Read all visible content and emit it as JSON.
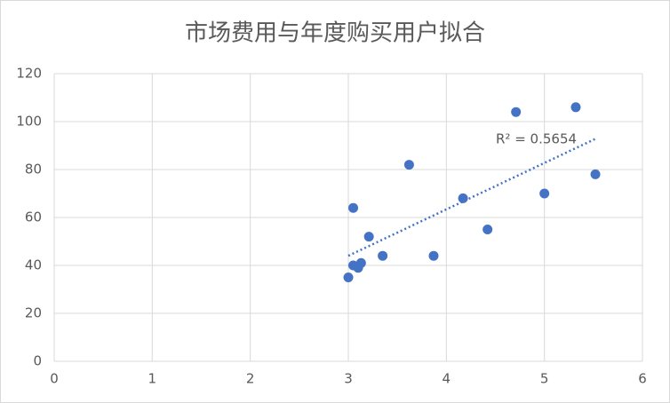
{
  "chart_data": {
    "type": "scatter",
    "title": "市场费用与年度购买用户拟合",
    "x": [
      3.0,
      3.05,
      3.05,
      3.1,
      3.13,
      3.21,
      3.35,
      3.62,
      3.87,
      4.17,
      4.42,
      4.71,
      5.0,
      5.32,
      5.52
    ],
    "series": [
      {
        "name": "年度购买用户",
        "color": "#4472c4",
        "values": [
          35,
          40,
          64,
          39,
          41,
          52,
          44,
          82,
          44,
          68,
          55,
          104,
          70,
          106,
          78
        ]
      }
    ],
    "xlim": [
      0,
      6
    ],
    "xticks": [
      0,
      1,
      2,
      3,
      4,
      5,
      6
    ],
    "ylim": [
      0,
      120
    ],
    "yticks": [
      0,
      20,
      40,
      60,
      80,
      100,
      120
    ],
    "grid": true,
    "trendline": "linear",
    "annotation": "R² = 0.5654"
  }
}
